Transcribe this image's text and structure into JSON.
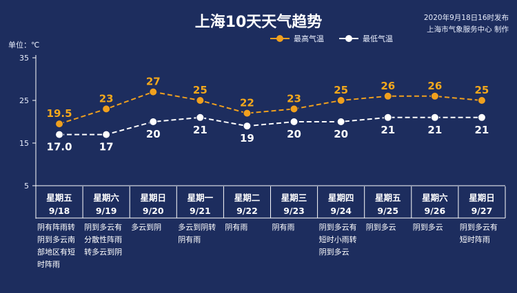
{
  "header": {
    "title": "上海10天天气趋势",
    "publish_time": "2020年9月18日16时发布",
    "publisher": "上海市气象服务中心 制作",
    "unit_label": "单位：℃"
  },
  "colors": {
    "background": "#1d2d5e",
    "high_line": "#f0a01e",
    "low_line": "#ffffff",
    "high_label": "#f4a81c"
  },
  "chart_data": {
    "type": "line",
    "ylim": [
      5,
      35
    ],
    "yticks": [
      "35",
      "25",
      "15",
      "5"
    ],
    "grid": false,
    "legend_position": "top-right",
    "categories": [
      {
        "weekday": "星期五",
        "date": "9/18",
        "desc": [
          "阴有阵雨转",
          "阴到多云南",
          "部地区有短",
          "时阵雨"
        ]
      },
      {
        "weekday": "星期六",
        "date": "9/19",
        "desc": [
          "阴到多云有",
          "分散性阵雨",
          "转多云到阴"
        ]
      },
      {
        "weekday": "星期日",
        "date": "9/20",
        "desc": [
          "多云到阴"
        ]
      },
      {
        "weekday": "星期一",
        "date": "9/21",
        "desc": [
          "多云到阴转",
          "阴有雨"
        ]
      },
      {
        "weekday": "星期二",
        "date": "9/22",
        "desc": [
          "阴有雨"
        ]
      },
      {
        "weekday": "星期三",
        "date": "9/23",
        "desc": [
          "阴有雨"
        ]
      },
      {
        "weekday": "星期四",
        "date": "9/24",
        "desc": [
          "阴到多云有",
          "短时小雨转",
          "阴到多云"
        ]
      },
      {
        "weekday": "星期五",
        "date": "9/25",
        "desc": [
          "阴到多云"
        ]
      },
      {
        "weekday": "星期六",
        "date": "9/26",
        "desc": [
          "阴到多云"
        ]
      },
      {
        "weekday": "星期日",
        "date": "9/27",
        "desc": [
          "阴到多云有",
          "短时阵雨"
        ]
      }
    ],
    "series": [
      {
        "name": "最高气温",
        "values": [
          19.5,
          23,
          27,
          25,
          22,
          23,
          25,
          26,
          26,
          25
        ],
        "labels": [
          "19.5",
          "23",
          "27",
          "25",
          "22",
          "23",
          "25",
          "26",
          "26",
          "25"
        ]
      },
      {
        "name": "最低气温",
        "values": [
          17.0,
          17,
          20,
          21,
          19,
          20,
          20,
          21,
          21,
          21
        ],
        "labels": [
          "17.0",
          "17",
          "20",
          "21",
          "19",
          "20",
          "20",
          "21",
          "21",
          "21"
        ]
      }
    ]
  }
}
